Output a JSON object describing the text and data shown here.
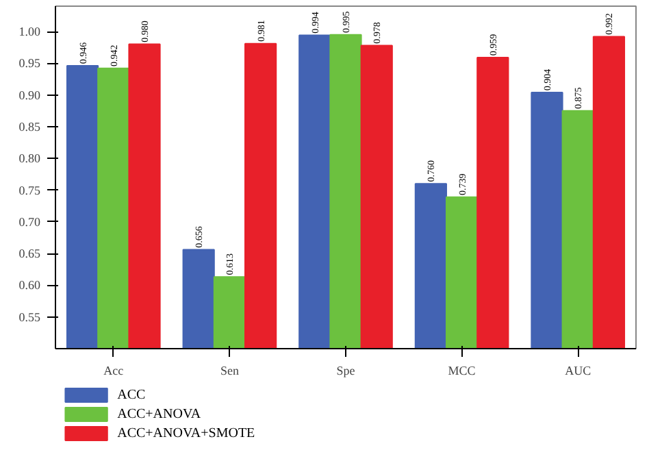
{
  "chart_data": {
    "type": "bar",
    "categories": [
      "Acc",
      "Sen",
      "Spe",
      "MCC",
      "AUC"
    ],
    "series": [
      {
        "name": "ACC",
        "color": "#4363b3",
        "values": [
          0.946,
          0.656,
          0.994,
          0.76,
          0.904
        ],
        "value_labels": [
          "0.946",
          "0.656",
          "0.994",
          "0.760",
          "0.904"
        ]
      },
      {
        "name": "ACC+ANOVA",
        "color": "#6cc13f",
        "values": [
          0.942,
          0.613,
          0.995,
          0.739,
          0.875
        ],
        "value_labels": [
          "0.942",
          "0.613",
          "0.995",
          "0.739",
          "0.875"
        ]
      },
      {
        "name": "ACC+ANOVA+SMOTE",
        "color": "#e8202a",
        "values": [
          0.98,
          0.981,
          0.978,
          0.959,
          0.992
        ],
        "value_labels": [
          "0.980",
          "0.981",
          "0.978",
          "0.959",
          "0.992"
        ]
      }
    ],
    "ylim": [
      0.5,
      1.04
    ],
    "grid": false,
    "yticks": [
      {
        "value": 0.55,
        "label": "0.55"
      },
      {
        "value": 0.6,
        "label": "0.60"
      },
      {
        "value": 0.65,
        "label": "0.65"
      },
      {
        "value": 0.7,
        "label": "0.70"
      },
      {
        "value": 0.75,
        "label": "0.75"
      },
      {
        "value": 0.8,
        "label": "0.80"
      },
      {
        "value": 0.85,
        "label": "0.85"
      },
      {
        "value": 0.9,
        "label": "0.90"
      },
      {
        "value": 0.95,
        "label": "0.95"
      },
      {
        "value": 1.0,
        "label": "1.00"
      }
    ],
    "legend": "bottom left"
  }
}
